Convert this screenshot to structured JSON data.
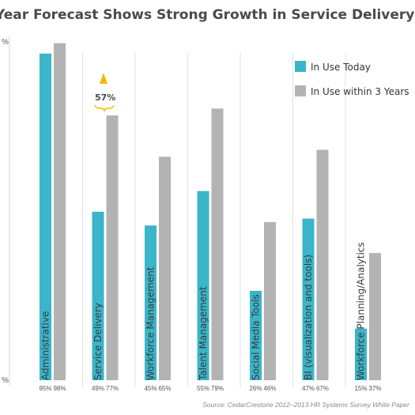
{
  "chart_data": {
    "type": "bar",
    "title": "Year Forecast Shows Strong Growth in Service Delivery Applic",
    "categories": [
      "Administrative",
      "Service Delivery",
      "Workforce Management",
      "Talent Management",
      "Social Media Tools",
      "BI (visualization and tools)",
      "Workforce Planning/Analytics"
    ],
    "series": [
      {
        "name": "In Use Today",
        "color": "#3ab5c9",
        "values": [
          95,
          49,
          45,
          55,
          26,
          47,
          15
        ],
        "labels": [
          "95%",
          "49%",
          "45%",
          "55%",
          "26%",
          "47%",
          "15%"
        ]
      },
      {
        "name": "In Use within 3 Years",
        "color": "#b3b3b3",
        "values": [
          98,
          77,
          65,
          79,
          46,
          67,
          37
        ],
        "labels": [
          "98%",
          "77%",
          "65%",
          "79%",
          "46%",
          "67%",
          "37%"
        ]
      }
    ],
    "ylim": [
      0,
      100
    ],
    "y_tick_labels": [
      "%",
      "%"
    ],
    "legend_position": "top-right",
    "annotation": {
      "text": "57%",
      "category": "Service Delivery",
      "color": "#f5b800"
    },
    "source": "Source: CedarCrestone 2012–2013 HR Systems Survey White Paper"
  }
}
